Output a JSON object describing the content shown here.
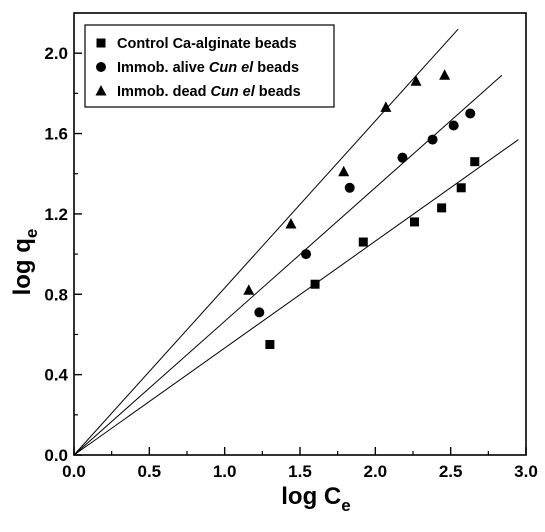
{
  "chart_data": {
    "type": "scatter",
    "xlabel": {
      "main": "log C",
      "sub": "e"
    },
    "ylabel": {
      "main": "log q",
      "sub": "e"
    },
    "xlim": [
      0.0,
      3.0
    ],
    "ylim": [
      0.0,
      2.2
    ],
    "xticks": [
      "0.0",
      "0.5",
      "1.0",
      "1.5",
      "2.0",
      "2.5",
      "3.0"
    ],
    "yticks": [
      "0.0",
      "0.4",
      "0.8",
      "1.2",
      "1.6",
      "2.0"
    ],
    "xtick_values": [
      0,
      0.5,
      1.0,
      1.5,
      2.0,
      2.5,
      3.0
    ],
    "ytick_values": [
      0,
      0.4,
      0.8,
      1.2,
      1.6,
      2.0
    ],
    "legend_position": "top-left",
    "series": [
      {
        "name": "Control Ca-alginate beads",
        "legend_parts": [
          {
            "text": "Control Ca-alginate beads",
            "italic": false
          }
        ],
        "marker": "square",
        "x": [
          1.3,
          1.6,
          1.92,
          2.26,
          2.44,
          2.57,
          2.66
        ],
        "y": [
          0.55,
          0.85,
          1.06,
          1.16,
          1.23,
          1.33,
          1.46
        ],
        "fit_line": {
          "x_end": 2.95,
          "y_end": 1.57
        }
      },
      {
        "name": "Immob. alive Cun el beads",
        "legend_parts": [
          {
            "text": "Immob. alive ",
            "italic": false
          },
          {
            "text": "Cun el",
            "italic": true
          },
          {
            "text": " beads",
            "italic": false
          }
        ],
        "marker": "circle",
        "x": [
          1.23,
          1.54,
          1.83,
          2.18,
          2.38,
          2.52,
          2.63
        ],
        "y": [
          0.71,
          1.0,
          1.33,
          1.48,
          1.57,
          1.64,
          1.7
        ],
        "fit_line": {
          "x_end": 2.84,
          "y_end": 1.89
        }
      },
      {
        "name": "Immob. dead Cun el beads",
        "legend_parts": [
          {
            "text": "Immob. dead ",
            "italic": false
          },
          {
            "text": "Cun el",
            "italic": true
          },
          {
            "text": " beads",
            "italic": false
          }
        ],
        "marker": "triangle",
        "x": [
          1.16,
          1.44,
          1.79,
          2.07,
          2.27,
          2.46
        ],
        "y": [
          0.82,
          1.15,
          1.41,
          1.73,
          1.86,
          1.89
        ],
        "fit_line": {
          "x_end": 2.55,
          "y_end": 2.12
        }
      }
    ]
  }
}
